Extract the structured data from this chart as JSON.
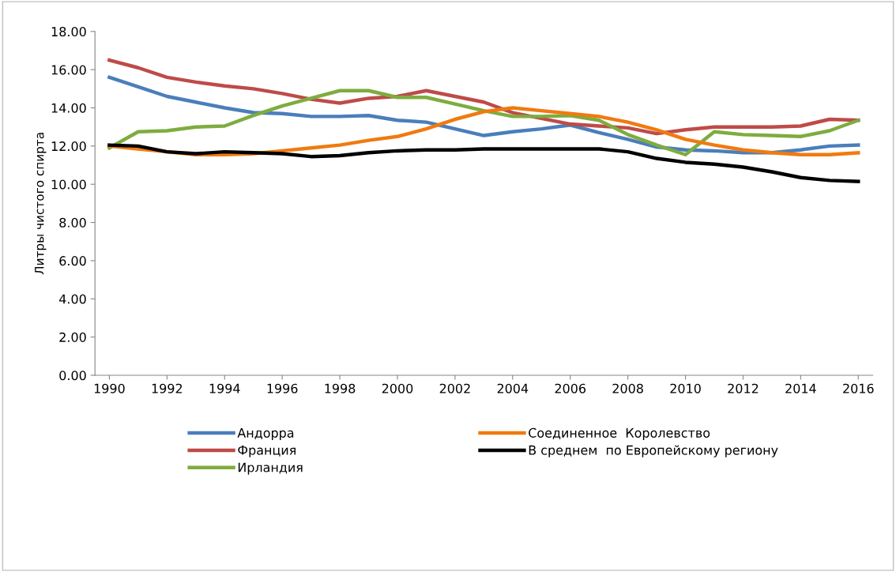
{
  "chart_data": {
    "type": "line",
    "ylabel": "Литры чистого спирта",
    "x": [
      1990,
      1991,
      1992,
      1993,
      1994,
      1995,
      1996,
      1997,
      1998,
      1999,
      2000,
      2001,
      2002,
      2003,
      2004,
      2005,
      2006,
      2007,
      2008,
      2009,
      2010,
      2011,
      2012,
      2013,
      2014,
      2015,
      2016
    ],
    "xlim": [
      1989.5,
      2016.5
    ],
    "xticks": [
      1990,
      1992,
      1994,
      1996,
      1998,
      2000,
      2002,
      2004,
      2006,
      2008,
      2010,
      2012,
      2014,
      2016
    ],
    "ylim": [
      0,
      18
    ],
    "yticks": [
      {
        "value": 0,
        "label": "0.00"
      },
      {
        "value": 2,
        "label": "2.00"
      },
      {
        "value": 4,
        "label": "4.00"
      },
      {
        "value": 6,
        "label": "6.00"
      },
      {
        "value": 8,
        "label": "8.00"
      },
      {
        "value": 10,
        "label": "10.00"
      },
      {
        "value": 12,
        "label": "12.00"
      },
      {
        "value": 14,
        "label": "14.00"
      },
      {
        "value": 16,
        "label": "16.00"
      },
      {
        "value": 18,
        "label": "18.00"
      }
    ],
    "grid": false,
    "legend": "bottom",
    "marker": "none",
    "line_style": "solid",
    "series": [
      {
        "name": "Андорра",
        "color": "#4a7ebb",
        "values": [
          15.6,
          15.1,
          14.6,
          14.3,
          14.0,
          13.75,
          13.7,
          13.55,
          13.55,
          13.6,
          13.35,
          13.25,
          12.9,
          12.55,
          12.75,
          12.9,
          13.1,
          12.7,
          12.35,
          11.95,
          11.8,
          11.75,
          11.65,
          11.65,
          11.8,
          12.0,
          12.05
        ]
      },
      {
        "name": "Франция",
        "color": "#be4b48",
        "values": [
          16.5,
          16.1,
          15.6,
          15.35,
          15.15,
          15.0,
          14.75,
          14.45,
          14.25,
          14.5,
          14.6,
          14.9,
          14.6,
          14.3,
          13.75,
          13.45,
          13.15,
          13.05,
          12.95,
          12.65,
          12.85,
          13.0,
          13.0,
          13.0,
          13.05,
          13.4,
          13.35
        ]
      },
      {
        "name": "Ирландия",
        "color": "#7eac3f",
        "values": [
          11.9,
          12.75,
          12.8,
          13.0,
          13.05,
          13.6,
          14.1,
          14.5,
          14.9,
          14.9,
          14.55,
          14.55,
          14.2,
          13.85,
          13.55,
          13.55,
          13.6,
          13.35,
          12.6,
          12.05,
          11.55,
          12.75,
          12.6,
          12.55,
          12.5,
          12.8,
          13.35
        ]
      },
      {
        "name": "Соединенное  Королевство",
        "color": "#f07a10",
        "values": [
          12.0,
          11.85,
          11.7,
          11.55,
          11.55,
          11.6,
          11.75,
          11.9,
          12.05,
          12.3,
          12.5,
          12.9,
          13.4,
          13.8,
          14.0,
          13.85,
          13.7,
          13.55,
          13.25,
          12.85,
          12.35,
          12.05,
          11.8,
          11.65,
          11.55,
          11.55,
          11.65
        ]
      },
      {
        "name": "В среднем  по Европейскому региону",
        "color": "#000000",
        "values": [
          12.05,
          12.0,
          11.7,
          11.6,
          11.7,
          11.65,
          11.6,
          11.45,
          11.5,
          11.65,
          11.75,
          11.8,
          11.8,
          11.85,
          11.85,
          11.85,
          11.85,
          11.85,
          11.7,
          11.35,
          11.15,
          11.05,
          10.9,
          10.65,
          10.35,
          10.2,
          10.15
        ]
      }
    ]
  }
}
